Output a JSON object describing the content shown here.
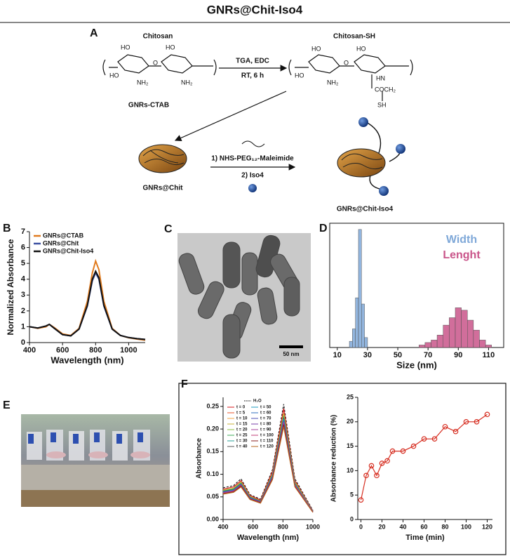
{
  "title": "GNRs@Chit-Iso4",
  "scheme": {
    "panel_label": "A",
    "reactant": "Chitosan",
    "product": "Chitosan-SH",
    "reagents_1": "TGA, EDC",
    "conditions_1": "RT, 6 h",
    "reagent_2": "GNRs-CTAB",
    "step_3a": "1) NHS-PEG₁₂-Maleimide",
    "step_3b": "2) Iso4",
    "intermediate": "GNRs@Chit",
    "final": "GNRs@Chit-Iso4",
    "chitosan_atoms": [
      "HO",
      "HO",
      "HO",
      "O",
      "NH₂",
      "NH₂"
    ],
    "chitosan_sh_atoms": [
      "HO",
      "HO",
      "HO",
      "O",
      "NH₂",
      "HN",
      "COCH₂",
      "SH"
    ]
  },
  "images": [
    {
      "panel_label": "C",
      "scale_bar_label": "50 nm"
    },
    {
      "panel_label": "E"
    }
  ],
  "chart_data": [
    {
      "type": "line",
      "panel_label": "B",
      "xlabel": "Wavelength (nm)",
      "ylabel": "Normalized Absorbance",
      "x": [
        400,
        450,
        500,
        520,
        550,
        600,
        650,
        700,
        750,
        780,
        800,
        820,
        850,
        900,
        950,
        1000,
        1050,
        1100
      ],
      "series": [
        {
          "name": "GNRs@CTAB",
          "color": "#e07b1f",
          "values": [
            1.0,
            0.9,
            1.0,
            1.15,
            0.95,
            0.55,
            0.45,
            0.9,
            2.6,
            4.4,
            5.15,
            4.6,
            2.6,
            0.9,
            0.45,
            0.3,
            0.22,
            0.15
          ]
        },
        {
          "name": "GNRs@Chit",
          "color": "#3b4fa0",
          "values": [
            1.0,
            0.92,
            1.05,
            1.15,
            0.9,
            0.5,
            0.42,
            0.85,
            2.3,
            3.9,
            4.4,
            4.0,
            2.3,
            0.85,
            0.45,
            0.32,
            0.25,
            0.2
          ]
        },
        {
          "name": "GNRs@Chit-Iso4",
          "color": "#111111",
          "values": [
            1.0,
            0.92,
            1.05,
            1.15,
            0.9,
            0.5,
            0.42,
            0.85,
            2.35,
            4.0,
            4.5,
            4.1,
            2.35,
            0.85,
            0.45,
            0.32,
            0.25,
            0.2
          ]
        }
      ],
      "xlim": [
        400,
        1100
      ],
      "xticks": [
        400,
        600,
        800,
        1000
      ],
      "ylim": [
        0,
        7
      ],
      "yticks": [
        0,
        1,
        2,
        3,
        4,
        5,
        6,
        7
      ],
      "legend": "upper left"
    },
    {
      "type": "histogram",
      "panel_label": "D",
      "xlabel": "Size (nm)",
      "series": [
        {
          "name": "Width",
          "color": "#7fa8d8",
          "bins": [
            18,
            20,
            22,
            24,
            26,
            28,
            30
          ],
          "values": [
            5,
            15,
            40,
            95,
            35,
            8
          ]
        },
        {
          "name": "Lenght",
          "color": "#c9558a",
          "bins": [
            64,
            68,
            72,
            76,
            80,
            84,
            88,
            92,
            96,
            100,
            104,
            108,
            112
          ],
          "values": [
            2,
            4,
            6,
            10,
            18,
            24,
            32,
            30,
            22,
            14,
            6,
            2
          ]
        }
      ],
      "xlim": [
        5,
        120
      ],
      "xticks": [
        10,
        30,
        50,
        70,
        90,
        110
      ],
      "ylim": [
        0,
        100
      ],
      "frame": true,
      "legend": "upper right"
    },
    {
      "type": "line",
      "xlabel": "Wavelength (nm)",
      "ylabel": "Absorbance",
      "x": [
        400,
        470,
        520,
        580,
        650,
        730,
        805,
        880,
        1000
      ],
      "series": [
        {
          "name": "H₂O",
          "color": "#222222",
          "dashed": true,
          "values": [
            0.07,
            0.075,
            0.09,
            0.055,
            0.045,
            0.11,
            0.255,
            0.09,
            0.02
          ]
        },
        {
          "name": "t = 0",
          "color": "#d7191c",
          "values": [
            0.067,
            0.072,
            0.086,
            0.053,
            0.043,
            0.106,
            0.245,
            0.086,
            0.019
          ]
        },
        {
          "name": "t = 5",
          "color": "#e8552b",
          "values": [
            0.064,
            0.069,
            0.083,
            0.051,
            0.041,
            0.101,
            0.235,
            0.083,
            0.018
          ]
        },
        {
          "name": "t = 10",
          "color": "#f4a341",
          "values": [
            0.064,
            0.068,
            0.082,
            0.05,
            0.041,
            0.1,
            0.232,
            0.082,
            0.018
          ]
        },
        {
          "name": "t = 15",
          "color": "#c9b33a",
          "values": [
            0.065,
            0.069,
            0.083,
            0.051,
            0.041,
            0.101,
            0.235,
            0.083,
            0.018
          ]
        },
        {
          "name": "t = 20",
          "color": "#8cbf3f",
          "values": [
            0.063,
            0.068,
            0.081,
            0.05,
            0.041,
            0.099,
            0.23,
            0.081,
            0.018
          ]
        },
        {
          "name": "t = 25",
          "color": "#3fae5a",
          "values": [
            0.063,
            0.067,
            0.08,
            0.049,
            0.04,
            0.098,
            0.228,
            0.08,
            0.018
          ]
        },
        {
          "name": "t = 30",
          "color": "#2aa198",
          "values": [
            0.062,
            0.066,
            0.079,
            0.048,
            0.04,
            0.097,
            0.225,
            0.079,
            0.018
          ]
        },
        {
          "name": "t = 40",
          "color": "#555555",
          "values": [
            0.062,
            0.066,
            0.079,
            0.049,
            0.04,
            0.097,
            0.225,
            0.079,
            0.017
          ]
        },
        {
          "name": "t = 50",
          "color": "#1f9bbf",
          "values": [
            0.061,
            0.065,
            0.078,
            0.048,
            0.039,
            0.096,
            0.222,
            0.078,
            0.017
          ]
        },
        {
          "name": "t = 60",
          "color": "#2f6fbf",
          "values": [
            0.06,
            0.064,
            0.077,
            0.047,
            0.038,
            0.094,
            0.218,
            0.077,
            0.017
          ]
        },
        {
          "name": "t = 70",
          "color": "#4b4fb5",
          "values": [
            0.06,
            0.064,
            0.077,
            0.047,
            0.039,
            0.094,
            0.218,
            0.076,
            0.017
          ]
        },
        {
          "name": "t = 80",
          "color": "#7a3fa8",
          "values": [
            0.058,
            0.062,
            0.075,
            0.046,
            0.037,
            0.091,
            0.212,
            0.075,
            0.017
          ]
        },
        {
          "name": "t = 90",
          "color": "#a63f9b",
          "values": [
            0.059,
            0.063,
            0.076,
            0.046,
            0.038,
            0.092,
            0.215,
            0.076,
            0.017
          ]
        },
        {
          "name": "t = 100",
          "color": "#c23f7a",
          "values": [
            0.058,
            0.062,
            0.074,
            0.045,
            0.037,
            0.09,
            0.21,
            0.074,
            0.016
          ]
        },
        {
          "name": "t = 110",
          "color": "#8a1c1c",
          "values": [
            0.057,
            0.061,
            0.074,
            0.045,
            0.037,
            0.09,
            0.21,
            0.073,
            0.016
          ]
        },
        {
          "name": "t = 120",
          "color": "#b5651d",
          "values": [
            0.056,
            0.06,
            0.072,
            0.044,
            0.036,
            0.088,
            0.205,
            0.072,
            0.016
          ]
        }
      ],
      "xlim": [
        400,
        1000
      ],
      "xticks": [
        400,
        600,
        800,
        1000
      ],
      "ylim": [
        0,
        0.27
      ],
      "yticks": [
        {
          "value": 0,
          "label": "0.00"
        },
        0.05,
        {
          "value": 0.1,
          "label": "0.10"
        },
        0.15,
        {
          "value": 0.2,
          "label": "0.20"
        },
        0.25
      ],
      "legend": "upper left"
    },
    {
      "type": "line",
      "panel_label": "F",
      "xlabel": "Time (min)",
      "ylabel": "Absorbance reduction (%)",
      "x": [
        0,
        5,
        10,
        15,
        20,
        25,
        30,
        40,
        50,
        60,
        70,
        80,
        90,
        100,
        110,
        120
      ],
      "series": [
        {
          "color": "#d62d20",
          "values": [
            4,
            9,
            11,
            9,
            11.5,
            12,
            14,
            14,
            15,
            16.5,
            16.5,
            19,
            18,
            20,
            20,
            21.5
          ]
        }
      ],
      "markers": true,
      "xlim": [
        -3,
        125
      ],
      "xticks": [
        0,
        20,
        40,
        60,
        80,
        100,
        120
      ],
      "ylim": [
        0,
        25
      ],
      "yticks": [
        0,
        5,
        10,
        15,
        20,
        25
      ]
    }
  ]
}
